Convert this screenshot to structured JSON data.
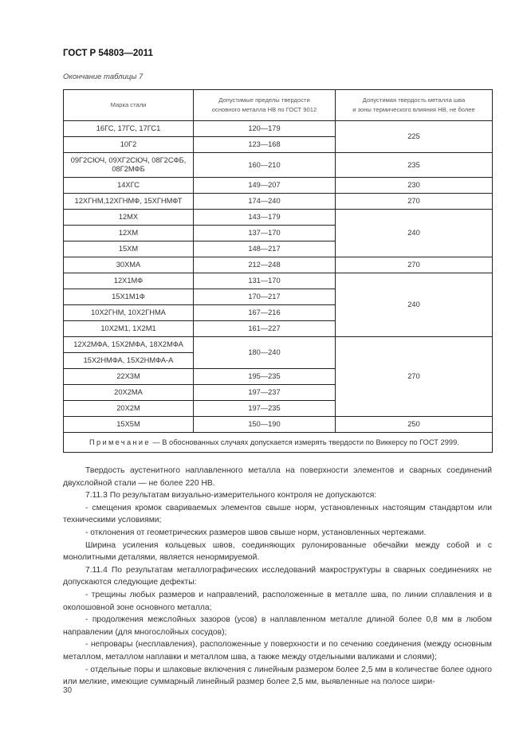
{
  "header": {
    "title": "ГОСТ Р 54803—2011",
    "caption": "Окончание таблицы 7"
  },
  "table": {
    "columns": [
      "Марка стали",
      "Допустимые пределы твердости основного металла НВ по ГОСТ 9012",
      "Допустимая твердость металла шва и зоны термического влияния НВ, не более"
    ],
    "columns_l1": [
      "Марка стали",
      "Допустимые пределы твердости",
      "Допустимая твердость металла шва"
    ],
    "columns_l2": [
      "",
      "основного металла НВ по ГОСТ  9012",
      "и зоны термического влияния НВ, не более"
    ],
    "rows": [
      {
        "grade": "16ГС, 17ГС, 17ГС1",
        "range": "120—179",
        "hardness": "225",
        "hspan": 2
      },
      {
        "grade": "10Г2",
        "range": "123—168"
      },
      {
        "grade": "09Г2СЮЧ, 09ХГ2СЮЧ, 08Г2СФБ, 08Г2МФБ",
        "range": "160—210",
        "hardness": "235",
        "hspan": 1,
        "tall": true
      },
      {
        "grade": "14ХГС",
        "range": "149—207",
        "hardness": "230",
        "hspan": 1
      },
      {
        "grade": "12ХГНМ,12ХГНМФ, 15ХГНМФТ",
        "range": "174—240",
        "hardness": "270",
        "hspan": 1
      },
      {
        "grade": "12МХ",
        "range": "143—179",
        "hardness": "240",
        "hspan": 3
      },
      {
        "grade": "12ХМ",
        "range": "137—170"
      },
      {
        "grade": "15ХМ",
        "range": "148—217"
      },
      {
        "grade": "30ХМА",
        "range": "212—248",
        "hardness": "270",
        "hspan": 1
      },
      {
        "grade": "12Х1МФ",
        "range": "131—170",
        "hardness": "240",
        "hspan": 4
      },
      {
        "grade": "15Х1М1Ф",
        "range": "170—217"
      },
      {
        "grade": "10Х2ГНМ, 10Х2ГНМА",
        "range": "167—216"
      },
      {
        "grade": "10Х2М1, 1Х2М1",
        "range": "161—227"
      },
      {
        "grade": "12Х2МФА, 15Х2МФА, 18Х2МФА",
        "range": "180—240",
        "rspan": 2,
        "hardness": "270",
        "hspan": 5
      },
      {
        "grade": "15Х2НМФА, 15Х2НМФА-А"
      },
      {
        "grade": "22Х3М",
        "range": "195—235"
      },
      {
        "grade": "20Х2МА",
        "range": "197—237"
      },
      {
        "grade": "20Х2М",
        "range": "197—235"
      },
      {
        "grade": "15Х5М",
        "range": "150—190",
        "hardness": "250",
        "hspan": 1
      }
    ],
    "note_label": "Примечание",
    "note_text": " — В обоснованных случаях допускается измерять твердости по Виккерсу по ГОСТ 2999."
  },
  "paragraphs": [
    "Твердость аустенитного наплавленного металла на поверхности элементов и сварных соединений двухслойной стали — не более 220 НВ.",
    "7.11.3  По результатам визуально-измерительного контроля не допускаются:",
    "- смещения кромок свариваемых элементов свыше норм, установленных настоящим стандартом или техническими условиями;",
    "- отклонения от геометрических размеров швов свыше норм, установленных чертежами.",
    "Ширина усиления кольцевых швов, соединяющих рулонированные обечайки между собой и с монолитными деталями, является ненормируемой.",
    "7.11.4  По результатам металлографических исследований макроструктуры в сварных соединениях не допускаются следующие дефекты:",
    "- трещины любых размеров и направлений, расположенные в металле шва, по линии сплавления и в околошовной зоне основного металла;",
    "- продолжения межслойных зазоров (усов) в наплавленном металле длиной более 0,8 мм в любом направлении (для многослойных сосудов);",
    "- непровары (несплавления), расположенные у поверхности и по сечению соединения (между основным металлом, металлом наплавки и металлом шва, а также между отдельными валиками и слоями);",
    "- отдельные поры и шлаковые включения с линейным размером более 2,5 мм в количестве более одного или мелкие, имеющие суммарный линейный размер более 2,5 мм, выявленные на полосе шири-"
  ],
  "page_number": "30"
}
